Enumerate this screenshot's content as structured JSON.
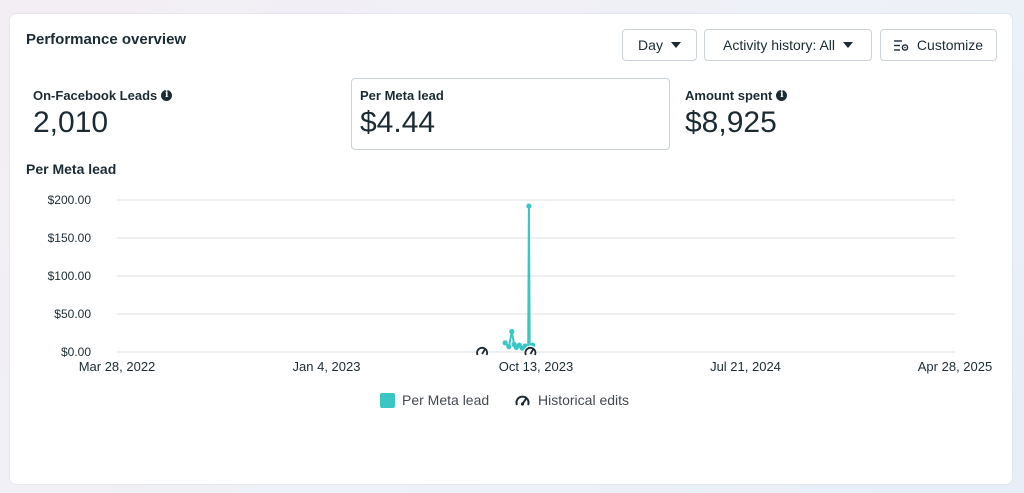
{
  "header": {
    "title": "Performance overview",
    "day_label": "Day",
    "activity_label": "Activity history: All",
    "customize_label": "Customize"
  },
  "metrics": [
    {
      "label": "On-Facebook Leads",
      "value": "2,010"
    },
    {
      "label": "Per Meta lead",
      "value": "$4.44"
    },
    {
      "label": "Amount spent",
      "value": "$8,925"
    }
  ],
  "colors": {
    "series": "#3ac6c4",
    "grid": "#dcdfe3",
    "text": "#1c2b33"
  },
  "chart_data": {
    "type": "line",
    "title": "Per Meta lead",
    "y_ticks": [
      "$0.00",
      "$50.00",
      "$100.00",
      "$150.00",
      "$200.00"
    ],
    "y_tick_values": [
      0,
      50,
      100,
      150,
      200
    ],
    "ylim": [
      0,
      200
    ],
    "x_ticks": [
      "Mar 28, 2022",
      "Jan 4, 2023",
      "Oct 13, 2023",
      "Jul 21, 2024",
      "Apr 28, 2025"
    ],
    "xlim": [
      "2022-03-28",
      "2025-04-28"
    ],
    "grid": true,
    "legend_placement": "bottom",
    "series": [
      {
        "name": "Per Meta lead",
        "points": [
          {
            "x": "2023-09-01",
            "y": 12
          },
          {
            "x": "2023-09-06",
            "y": 7
          },
          {
            "x": "2023-09-10",
            "y": 27
          },
          {
            "x": "2023-09-13",
            "y": 10
          },
          {
            "x": "2023-09-16",
            "y": 6
          },
          {
            "x": "2023-09-20",
            "y": 9
          },
          {
            "x": "2023-09-24",
            "y": 5
          },
          {
            "x": "2023-09-28",
            "y": 8
          },
          {
            "x": "2023-10-02",
            "y": 6
          },
          {
            "x": "2023-10-03",
            "y": 192
          },
          {
            "x": "2023-10-04",
            "y": 6
          },
          {
            "x": "2023-10-08",
            "y": 9
          }
        ]
      }
    ],
    "historical_edits": [
      "2023-08-01",
      "2023-10-05"
    ],
    "legend": [
      {
        "label": "Per Meta lead",
        "kind": "series"
      },
      {
        "label": "Historical edits",
        "kind": "edit-marker"
      }
    ]
  }
}
